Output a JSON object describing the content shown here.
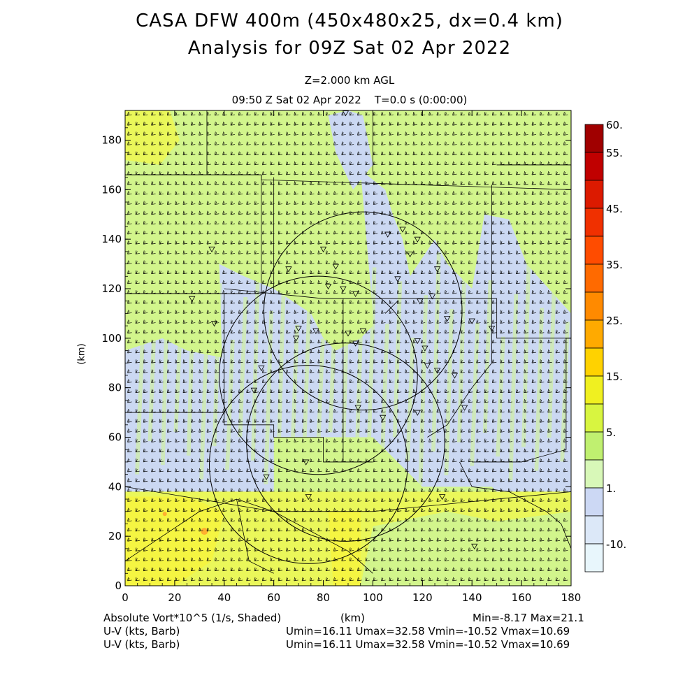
{
  "header": {
    "title_line1": "CASA DFW 400m (450x480x25, dx=0.4 km)",
    "title_line2": "Analysis for 09Z Sat 02 Apr 2022",
    "level_text": "Z=2.000 km AGL",
    "time_text": "09:50 Z Sat 02 Apr 2022    T=0.0 s (0:00:00)"
  },
  "footer": {
    "variable_text": "Absolute Vort*10^5 (1/s, Shaded)",
    "x_unit_text": "(km)",
    "minmax_text": "Min=-8.17 Max=21.1",
    "uv_label_1": "U-V (kts, Barb)",
    "uv_stats_1": "Umin=16.11 Umax=32.58 Vmin=-10.52 Vmax=10.69",
    "uv_label_2": "U-V (kts, Barb)",
    "uv_stats_2": "Umin=16.11 Umax=32.58 Vmin=-10.52 Vmax=10.69"
  },
  "chart_data": {
    "type": "heatmap",
    "title": "CASA DFW 400m (450x480x25, dx=0.4 km) Analysis for 09Z Sat 02 Apr 2022",
    "xlabel": "(km)",
    "ylabel": "(km)",
    "xlim": [
      0,
      180
    ],
    "ylim": [
      0,
      192
    ],
    "x_ticks": [
      "0",
      "20",
      "40",
      "60",
      "80",
      "100",
      "120",
      "140",
      "160",
      "180"
    ],
    "y_ticks": [
      "0",
      "20",
      "40",
      "60",
      "80",
      "100",
      "120",
      "140",
      "160",
      "180"
    ],
    "colorbar": {
      "labels": [
        "60.",
        "55.",
        "45.",
        "35.",
        "25.",
        "15.",
        "5.",
        "1.",
        "-10."
      ],
      "levels": [
        60,
        55,
        50,
        45,
        40,
        35,
        30,
        25,
        20,
        15,
        10,
        5,
        1,
        0,
        -10
      ],
      "colors": [
        "#a00000",
        "#c00000",
        "#dc1a00",
        "#f03000",
        "#ff4c00",
        "#ff6a00",
        "#ff8a00",
        "#ffaa00",
        "#ffd200",
        "#f0f020",
        "#d8f540",
        "#c0f070",
        "#d8f8b8",
        "#ccd8f4",
        "#dce8f8",
        "#e8f6fc"
      ]
    },
    "field_summary": {
      "variable": "Absolute Vort*10^5 (1/s, Shaded)",
      "min": -8.17,
      "max": 21.1
    },
    "wind_barbs": {
      "variable": "U-V (kts, Barb)",
      "umin": 16.11,
      "umax": 32.58,
      "vmin": -10.52,
      "vmax": 10.69
    },
    "radar_rings": [
      {
        "center_x": 74,
        "center_y": 49,
        "radius_km": 40
      },
      {
        "center_x": 96,
        "center_y": 111,
        "radius_km": 40
      },
      {
        "center_x": 78,
        "center_y": 85,
        "radius_km": 40
      },
      {
        "center_x": 89,
        "center_y": 58,
        "radius_km": 40
      }
    ],
    "colors": {
      "green_base": "#d2f58c",
      "blue_band": "#cbd8f2",
      "yellow_band": "#eaf75a",
      "yellow_core": "#f5f542",
      "orange_spot": "#ffb030",
      "line": "#000000"
    }
  }
}
